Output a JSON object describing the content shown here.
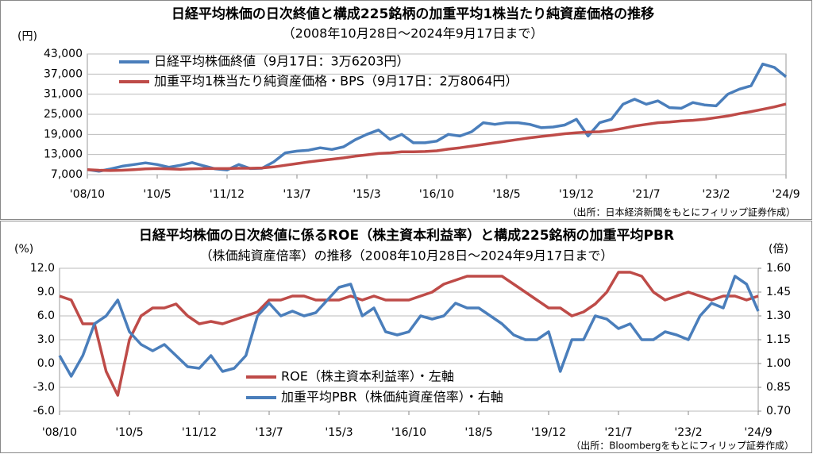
{
  "chart_data": [
    {
      "type": "line",
      "title": "日経平均株価の日次終値と構成225銘柄の加重平均1株当たり純資産価格の推移",
      "subtitle": "（2008年10月28日～2024年9月17日まで）",
      "y_unit": "(円)",
      "source": "（出所：日本経済新聞をもとにフィリップ証券作成）",
      "x": [
        "'08/10",
        null,
        null,
        null,
        null,
        null,
        "'10/5",
        null,
        null,
        null,
        null,
        null,
        "'11/12",
        null,
        null,
        null,
        null,
        null,
        "'13/7",
        null,
        null,
        null,
        null,
        null,
        "'15/3",
        null,
        null,
        null,
        null,
        null,
        "'16/10",
        null,
        null,
        null,
        null,
        null,
        "'18/5",
        null,
        null,
        null,
        null,
        null,
        "'19/12",
        null,
        null,
        null,
        null,
        null,
        "'21/7",
        null,
        null,
        null,
        null,
        null,
        "'23/2",
        null,
        null,
        null,
        null,
        null,
        "'24/9"
      ],
      "ylim": [
        7000,
        43000
      ],
      "yticks": [
        {
          "value": 7000,
          "label": "7,000"
        },
        {
          "value": 13000,
          "label": "13,000"
        },
        {
          "value": 19000,
          "label": "19,000"
        },
        {
          "value": 25000,
          "label": "25,000"
        },
        {
          "value": 31000,
          "label": "31,000"
        },
        {
          "value": 37000,
          "label": "37,000"
        },
        {
          "value": 43000,
          "label": "43,000"
        }
      ],
      "grid": true,
      "series": [
        {
          "name": "日経平均株価終値（9月17日：3万6203円）",
          "color": "#4a7ebb",
          "values": [
            8500,
            8000,
            8700,
            9500,
            10000,
            10500,
            10000,
            9200,
            9800,
            10600,
            9600,
            8700,
            8400,
            10000,
            8800,
            8900,
            10800,
            13500,
            14000,
            14300,
            15000,
            14500,
            15300,
            17400,
            19000,
            20300,
            17500,
            19000,
            16500,
            16500,
            17000,
            19000,
            18500,
            19800,
            22500,
            22000,
            22500,
            22500,
            22000,
            21000,
            21200,
            21800,
            23500,
            18500,
            22500,
            23500,
            28000,
            29500,
            28000,
            29000,
            27000,
            26800,
            28500,
            27800,
            27500,
            31000,
            32500,
            33500,
            40000,
            39000,
            36203
          ]
        },
        {
          "name": "加重平均1株当たり純資産価格・BPS（9月17日：2万8064円）",
          "color": "#be4b48",
          "values": [
            8500,
            8300,
            8200,
            8300,
            8500,
            8700,
            8800,
            8700,
            8600,
            8700,
            8800,
            8800,
            8800,
            8900,
            8900,
            9000,
            9300,
            9800,
            10300,
            10800,
            11200,
            11600,
            12000,
            12500,
            12900,
            13300,
            13500,
            13800,
            13800,
            13900,
            14100,
            14600,
            15000,
            15500,
            16000,
            16500,
            17000,
            17500,
            18000,
            18400,
            18800,
            19200,
            19500,
            19700,
            19800,
            20200,
            20800,
            21500,
            22000,
            22500,
            22700,
            23000,
            23200,
            23500,
            24000,
            24500,
            25200,
            25800,
            26500,
            27200,
            28064
          ]
        }
      ]
    },
    {
      "type": "line",
      "title": "日経平均株価の日次終値に係るROE（株主資本利益率）と構成225銘柄の加重平均PBR",
      "subtitle": "（株価純資産倍率）の推移（2008年10月28日～2024年9月17日まで）",
      "y_unit": "(%)",
      "y2_unit": "(倍)",
      "source": "（出所：Bloombergをもとにフィリップ証券作成）",
      "x": [
        "'08/10",
        null,
        null,
        null,
        null,
        null,
        "'10/5",
        null,
        null,
        null,
        null,
        null,
        "'11/12",
        null,
        null,
        null,
        null,
        null,
        "'13/7",
        null,
        null,
        null,
        null,
        null,
        "'15/3",
        null,
        null,
        null,
        null,
        null,
        "'16/10",
        null,
        null,
        null,
        null,
        null,
        "'18/5",
        null,
        null,
        null,
        null,
        null,
        "'19/12",
        null,
        null,
        null,
        null,
        null,
        "'21/7",
        null,
        null,
        null,
        null,
        null,
        "'23/2",
        null,
        null,
        null,
        null,
        null,
        "'24/9"
      ],
      "ylim": [
        -6,
        12
      ],
      "yticks": [
        {
          "value": -6,
          "label": "-6.0"
        },
        {
          "value": -3,
          "label": "-3.0"
        },
        {
          "value": 0,
          "label": "0.0"
        },
        {
          "value": 3,
          "label": "3.0"
        },
        {
          "value": 6,
          "label": "6.0"
        },
        {
          "value": 9,
          "label": "9.0"
        },
        {
          "value": 12,
          "label": "12.0"
        }
      ],
      "negative_tick_color": "#e00000",
      "y2lim": [
        0.7,
        1.6
      ],
      "y2ticks": [
        {
          "value": 0.7,
          "label": "0.70"
        },
        {
          "value": 0.85,
          "label": "0.85"
        },
        {
          "value": 1.0,
          "label": "1.00"
        },
        {
          "value": 1.15,
          "label": "1.15"
        },
        {
          "value": 1.3,
          "label": "1.30"
        },
        {
          "value": 1.45,
          "label": "1.45"
        },
        {
          "value": 1.6,
          "label": "1.60"
        }
      ],
      "grid": true,
      "series": [
        {
          "name": "ROE（株主資本利益率）・左軸",
          "color": "#be4b48",
          "values": [
            8.5,
            8.0,
            5.0,
            5.0,
            -1.0,
            -4.0,
            3.0,
            6.0,
            7.0,
            7.0,
            7.5,
            6.0,
            5.0,
            5.3,
            5.0,
            5.5,
            6.0,
            6.5,
            8.0,
            8.0,
            8.5,
            8.5,
            8.0,
            8.0,
            8.0,
            8.5,
            8.0,
            8.5,
            8.0,
            8.0,
            8.0,
            8.5,
            9.0,
            10.0,
            10.5,
            11.0,
            11.0,
            11.0,
            11.0,
            10.0,
            9.0,
            8.0,
            7.0,
            7.0,
            6.0,
            6.5,
            7.5,
            9.0,
            11.5,
            11.5,
            11.0,
            9.0,
            8.0,
            8.5,
            9.0,
            8.5,
            8.0,
            8.5,
            8.5,
            8.0,
            8.5
          ]
        },
        {
          "name": "加重平均PBR（株価純資産倍率）・右軸",
          "color": "#4a7ebb",
          "axis": "y2",
          "values": [
            1.05,
            0.92,
            1.05,
            1.25,
            1.3,
            1.4,
            1.2,
            1.12,
            1.08,
            1.12,
            1.05,
            0.98,
            0.97,
            1.05,
            0.95,
            0.97,
            1.05,
            1.3,
            1.38,
            1.3,
            1.33,
            1.3,
            1.32,
            1.4,
            1.48,
            1.5,
            1.3,
            1.35,
            1.2,
            1.18,
            1.2,
            1.3,
            1.28,
            1.3,
            1.38,
            1.35,
            1.35,
            1.3,
            1.25,
            1.18,
            1.15,
            1.15,
            1.2,
            0.95,
            1.15,
            1.15,
            1.3,
            1.28,
            1.22,
            1.25,
            1.15,
            1.15,
            1.2,
            1.18,
            1.15,
            1.3,
            1.38,
            1.35,
            1.55,
            1.5,
            1.33
          ]
        }
      ]
    }
  ]
}
